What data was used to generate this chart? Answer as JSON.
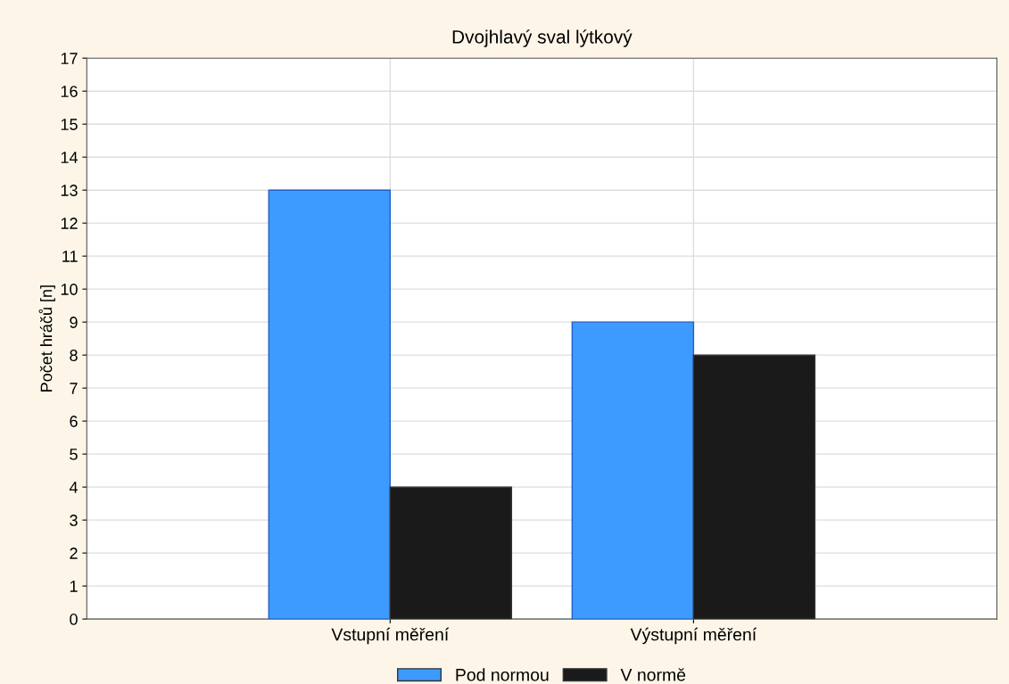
{
  "chart_data": {
    "type": "bar",
    "title": "Dvojhlavý sval lýtkový",
    "ylabel": "Počet hráčů [n]",
    "categories": [
      "Vstupní měření",
      "Výstupní měření"
    ],
    "series": [
      {
        "name": "Pod normou",
        "color": "#3d9bff",
        "values": [
          13,
          9
        ]
      },
      {
        "name": "V normě",
        "color": "#1a1a1a",
        "values": [
          4,
          8
        ]
      }
    ],
    "ylim": [
      0,
      17
    ],
    "yticks": [
      0,
      1,
      2,
      3,
      4,
      5,
      6,
      7,
      8,
      9,
      10,
      11,
      12,
      13,
      14,
      15,
      16,
      17
    ],
    "grid": true,
    "legend": "bottom"
  }
}
